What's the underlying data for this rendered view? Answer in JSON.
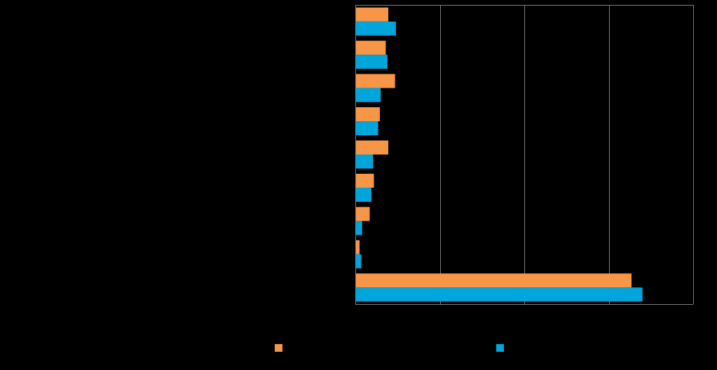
{
  "colors": {
    "background": "#000000",
    "series1": "#F79646",
    "series2": "#00A5DC",
    "grid": "#7F7F7F"
  },
  "chart_data": {
    "type": "bar",
    "orientation": "horizontal",
    "categories": [
      "",
      "",
      "",
      "",
      "",
      "",
      "",
      "",
      ""
    ],
    "series": [
      {
        "name": "",
        "color": "#F79646",
        "values": [
          3.9,
          3.6,
          4.7,
          2.9,
          3.9,
          2.2,
          1.7,
          0.5,
          32.7
        ]
      },
      {
        "name": "",
        "color": "#00A5DC",
        "values": [
          4.8,
          3.8,
          3.0,
          2.7,
          2.1,
          1.9,
          0.8,
          0.7,
          34.0
        ]
      }
    ],
    "xlim": [
      0,
      40
    ],
    "xticks": [
      0,
      10,
      20,
      30,
      40
    ],
    "grid": true,
    "legend": "bottom",
    "title": "",
    "xlabel": "",
    "ylabel": ""
  }
}
